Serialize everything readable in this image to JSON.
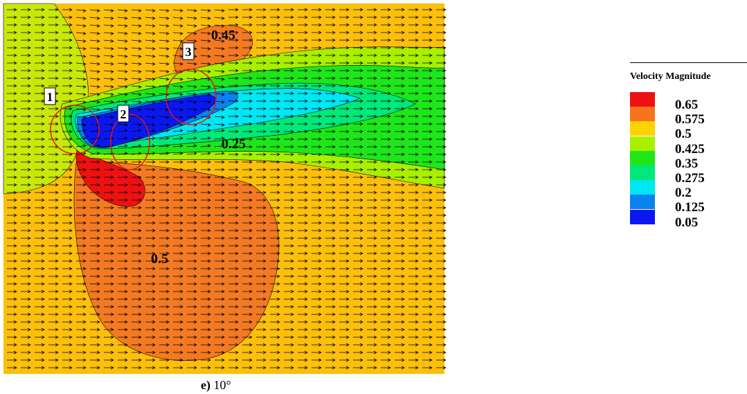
{
  "legend": {
    "title": "Velocity Magnitude",
    "levels": [
      {
        "value": "0.65",
        "color": "#ee1111"
      },
      {
        "value": "0.575",
        "color": "#f7731c"
      },
      {
        "value": "0.5",
        "color": "#ffd200"
      },
      {
        "value": "0.425",
        "color": "#a8ef00"
      },
      {
        "value": "0.35",
        "color": "#1ee61a"
      },
      {
        "value": "0.275",
        "color": "#00e87a"
      },
      {
        "value": "0.2",
        "color": "#00e6f2"
      },
      {
        "value": "0.125",
        "color": "#0a82f0"
      },
      {
        "value": "0.05",
        "color": "#0a18f0"
      }
    ]
  },
  "contour_labels": {
    "top": "0.45",
    "wake": "0.25",
    "bottom": "0.5"
  },
  "markers": [
    "1",
    "2",
    "3"
  ],
  "caption": {
    "letter": "e)",
    "angle": "10°"
  },
  "colors": {
    "background_field": "#fbbf0c",
    "high_region": "#f37a22",
    "peak_region": "#ee1111",
    "marker_circle": "#ee1111",
    "vector": "#000000"
  }
}
